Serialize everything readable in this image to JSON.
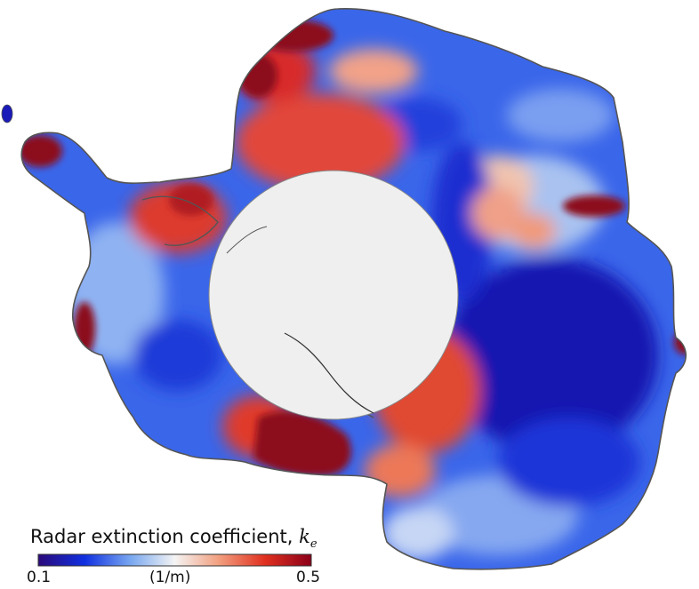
{
  "colorbar": {
    "title": "Radar extinction coefficient, ",
    "symbol": "k",
    "symbol_sub": "e",
    "min_label": "0.1",
    "unit_label": "(1/m)",
    "max_label": "0.5",
    "min_value": 0.1,
    "max_value": 0.5,
    "colors": [
      "#2b0a7a",
      "#1030e0",
      "#7aa8f0",
      "#f4f4f4",
      "#f2a080",
      "#e03020",
      "#8b0018"
    ]
  },
  "map_colors": {
    "very_low": "#1a1ab8",
    "low": "#2846e6",
    "mid_low": "#6f9cf0",
    "neutral": "#eef2fa",
    "mid_high": "#f0a288",
    "high": "#dc2a22",
    "very_high": "#8c0a1c",
    "pole_hole": "#efefef",
    "coastline": "#555555"
  }
}
